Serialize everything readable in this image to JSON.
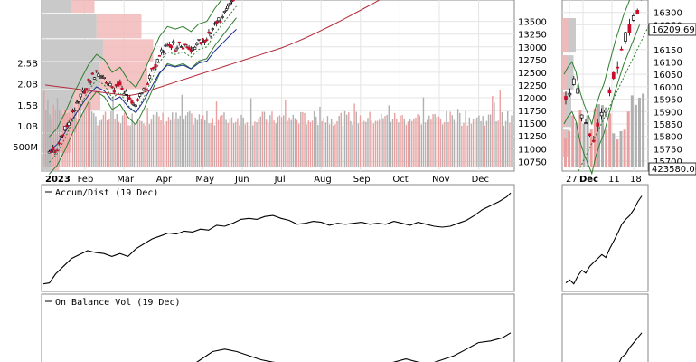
{
  "chart_data": [
    {
      "type": "candlestick-with-volume",
      "panel": "main-price",
      "overlays": [
        "bollinger-bands",
        "moving-average-blue",
        "moving-average-red",
        "volume-by-price",
        "volume-bars"
      ],
      "x_tick_labels": [
        "2023",
        "Feb",
        "Mar",
        "Apr",
        "May",
        "Jun",
        "Jul",
        "Aug",
        "Sep",
        "Oct",
        "Nov",
        "Dec"
      ],
      "price_ticks": [
        13500,
        13250,
        13000,
        12750,
        12500,
        12250,
        12000,
        11750,
        11500,
        11250,
        11000,
        10750
      ],
      "price_tick_labels": [
        "13500",
        "13250",
        "13000",
        "12750",
        "12500",
        "12250",
        "12000",
        "11750",
        "11500",
        "11250",
        "11000",
        "10750"
      ],
      "ylim": [
        10560,
        13920
      ],
      "volume_ticks": [
        500000000,
        1000000000,
        1500000000,
        2000000000,
        2500000000
      ],
      "volume_tick_labels": [
        "500M",
        "1.0B",
        "1.5B",
        "2.0B",
        "2.5B"
      ],
      "price_series": [
        {
          "month": 0.1,
          "value": 10880
        },
        {
          "month": 0.3,
          "value": 11050
        },
        {
          "month": 0.5,
          "value": 11350
        },
        {
          "month": 0.7,
          "value": 11700
        },
        {
          "month": 0.9,
          "value": 12000
        },
        {
          "month": 1.1,
          "value": 12300
        },
        {
          "month": 1.3,
          "value": 12500
        },
        {
          "month": 1.5,
          "value": 12400
        },
        {
          "month": 1.7,
          "value": 12150
        },
        {
          "month": 1.9,
          "value": 12250
        },
        {
          "month": 2.1,
          "value": 12000
        },
        {
          "month": 2.3,
          "value": 11850
        },
        {
          "month": 2.5,
          "value": 12150
        },
        {
          "month": 2.7,
          "value": 12500
        },
        {
          "month": 2.9,
          "value": 12850
        },
        {
          "month": 3.1,
          "value": 13050
        },
        {
          "month": 3.3,
          "value": 13000
        },
        {
          "month": 3.5,
          "value": 13050
        },
        {
          "month": 3.7,
          "value": 12950
        },
        {
          "month": 3.9,
          "value": 13100
        },
        {
          "month": 4.1,
          "value": 13150
        },
        {
          "month": 4.3,
          "value": 13400
        },
        {
          "month": 4.5,
          "value": 13600
        },
        {
          "month": 4.7,
          "value": 13800
        },
        {
          "month": 4.85,
          "value": 13950
        }
      ]
    },
    {
      "type": "candlestick",
      "panel": "zoom-price",
      "x_tick_labels": [
        "27",
        "Dec",
        "11",
        "18"
      ],
      "price_ticks": [
        16300,
        16250,
        16150,
        16100,
        16050,
        16000,
        15950,
        15900,
        15850,
        15800,
        15750,
        15700
      ],
      "price_tick_labels": [
        "16300",
        "16250",
        "16150",
        "16100",
        "16050",
        "16000",
        "15950",
        "15900",
        "15850",
        "15800",
        "15750",
        "15700"
      ],
      "ylim": [
        15660,
        16350
      ],
      "last_price_label": "16209.69",
      "last_value_label": "423580.00"
    },
    {
      "type": "line",
      "panel": "accum-dist",
      "title": "Accum/Dist (19 Dec)",
      "ylim": [
        0,
        100
      ],
      "x": [
        0.0,
        0.15,
        0.3,
        0.5,
        0.7,
        0.9,
        1.1,
        1.3,
        1.5,
        1.7,
        1.9,
        2.1,
        2.3,
        2.5,
        2.7,
        2.9,
        3.1,
        3.3,
        3.5,
        3.7,
        3.9,
        4.1,
        4.3,
        4.5,
        4.7,
        4.9,
        5.1,
        5.3,
        5.5,
        5.7,
        5.9,
        6.1,
        6.3,
        6.5,
        6.7,
        6.9,
        7.1,
        7.3,
        7.5,
        7.7,
        7.9,
        8.1,
        8.3,
        8.5,
        8.7,
        8.9,
        9.1,
        9.3,
        9.5,
        9.7,
        9.9,
        10.1,
        10.3,
        10.5,
        10.7,
        10.9,
        11.1,
        11.3,
        11.5,
        11.6
      ],
      "y": [
        4,
        5,
        14,
        22,
        30,
        34,
        38,
        36,
        35,
        32,
        35,
        32,
        40,
        45,
        50,
        53,
        56,
        55,
        58,
        57,
        60,
        59,
        64,
        63,
        66,
        70,
        71,
        70,
        73,
        74,
        71,
        69,
        65,
        66,
        68,
        67,
        64,
        66,
        65,
        66,
        67,
        65,
        66,
        65,
        68,
        66,
        64,
        67,
        65,
        63,
        62,
        63,
        66,
        69,
        74,
        80,
        84,
        88,
        93,
        97
      ]
    },
    {
      "type": "line",
      "panel": "on-balance-vol",
      "title": "On Balance Vol (19 Dec)",
      "ylim": [
        0,
        100
      ],
      "x": [
        0.0,
        0.3,
        0.6,
        0.9,
        1.2,
        1.5,
        1.8,
        2.1,
        2.4,
        2.7,
        3.0,
        3.3,
        3.6,
        3.9,
        4.2,
        4.5,
        4.8,
        5.1,
        5.4,
        5.7,
        6.0,
        6.3,
        6.6,
        6.9,
        7.2,
        7.5,
        7.8,
        8.1,
        8.4,
        8.7,
        9.0,
        9.3,
        9.6,
        9.9,
        10.2,
        10.5,
        10.8,
        11.1,
        11.4,
        11.6
      ],
      "y": [
        0,
        0,
        0,
        0,
        0,
        0,
        0,
        0,
        0,
        0,
        5,
        10,
        15,
        25,
        35,
        38,
        35,
        30,
        25,
        22,
        20,
        18,
        15,
        10,
        8,
        12,
        16,
        15,
        18,
        22,
        26,
        22,
        20,
        25,
        30,
        38,
        46,
        48,
        52,
        58
      ]
    },
    {
      "type": "line",
      "panel": "zoom-accum-dist",
      "ylim": [
        0,
        100
      ],
      "x": [
        0,
        1,
        2,
        3,
        4,
        5,
        6,
        7,
        8,
        9,
        10,
        11,
        12,
        13,
        14,
        15,
        16,
        17,
        18,
        19
      ],
      "y": [
        5,
        8,
        4,
        12,
        18,
        15,
        22,
        26,
        30,
        34,
        31,
        40,
        48,
        56,
        65,
        70,
        74,
        80,
        88,
        94
      ]
    },
    {
      "type": "line",
      "panel": "zoom-on-balance-vol",
      "ylim": [
        0,
        100
      ],
      "x": [
        0,
        1,
        2,
        3,
        4,
        5,
        6,
        7,
        8,
        9,
        10,
        11,
        12,
        13,
        14,
        15,
        16,
        17,
        18,
        19
      ],
      "y": [
        0,
        0,
        0,
        0,
        0,
        0,
        0,
        0,
        0,
        0,
        0,
        5,
        12,
        18,
        28,
        32,
        40,
        46,
        52,
        58
      ]
    }
  ]
}
